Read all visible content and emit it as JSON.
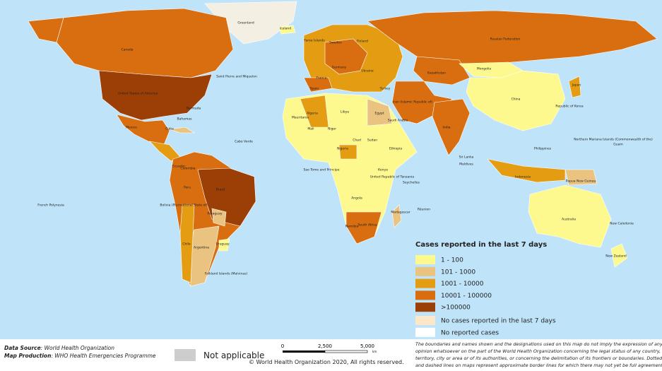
{
  "map": {
    "legend": {
      "title": "Cases reported in the last 7 days",
      "items": [
        {
          "label": "1 - 100",
          "color": "#fdf98f"
        },
        {
          "label": "101 - 1000",
          "color": "#e9c37f"
        },
        {
          "label": "1001 - 10000",
          "color": "#e49c12"
        },
        {
          "label": "10001 - 100000",
          "color": "#d86e0f"
        },
        {
          "label": ">100000",
          "color": "#9b3f06"
        },
        {
          "label": "No cases reported in the last 7 days",
          "color": "#fde7c9"
        },
        {
          "label": "No reported cases",
          "color": "#ffffff"
        }
      ]
    },
    "labels": [
      "Greenland",
      "Iceland",
      "Canada",
      "United States of America",
      "Mexico",
      "Cuba",
      "Bermuda",
      "Bahamas",
      "Saint Pierre and Miquelon",
      "Colombia",
      "Brazil",
      "Peru",
      "Bolivia (Plurinational State of)",
      "Chile",
      "Argentina",
      "Paraguay",
      "Uruguay",
      "Ecuador",
      "French Polynesia",
      "Falkland Islands (Malvinas)",
      "Cabo Verde",
      "Faroe Islands",
      "Russian Federation",
      "Kazakhstan",
      "Mongolia",
      "China",
      "India",
      "Sri Lanka",
      "Maldives",
      "Algeria",
      "Libya",
      "Egypt",
      "Mali",
      "Niger",
      "Chad",
      "Sudan",
      "Mauritania",
      "Nigeria",
      "Ethiopia",
      "Kenya",
      "Angola",
      "Namibia",
      "South Africa",
      "Madagascar",
      "Seychelles",
      "Réunion",
      "Sao Tome and Principe",
      "United Republic of Tanzania",
      "Saudi Arabia",
      "Iran (Islamic Republic of)",
      "Turkey",
      "Ukraine",
      "Sweden",
      "Finland",
      "Germany",
      "France",
      "Spain",
      "Japan",
      "Republic of Korea",
      "Philippines",
      "Indonesia",
      "Papua New Guinea",
      "Australia",
      "New Zealand",
      "New Caledonia",
      "Northern Mariana Islands (Commonwealth of the)",
      "Guam"
    ],
    "footer": {
      "source_label": "Data Source",
      "source_text": ": World Health Organization",
      "production_label": "Map Production",
      "production_text": ": WHO Health Emergencies Programme",
      "not_applicable": "Not applicable",
      "scale": [
        "0",
        "2,500",
        "5,000"
      ],
      "scale_unit": "km",
      "copyright": "© World Health Organization  2020,  All rights reserved.",
      "disclaimer": [
        "The boundaries and names shown and the designations used on this map do not imply the expression of any",
        "opinion whatsoever on the part of the World Health Organization concerning the legal status of any country,",
        "territory, city or area or of its authorities, or concerning the delimitation of its frontiers or boundaries. Dotted",
        "and dashed lines on maps represent approximate border lines for which there may not yet be full agreement."
      ]
    }
  }
}
